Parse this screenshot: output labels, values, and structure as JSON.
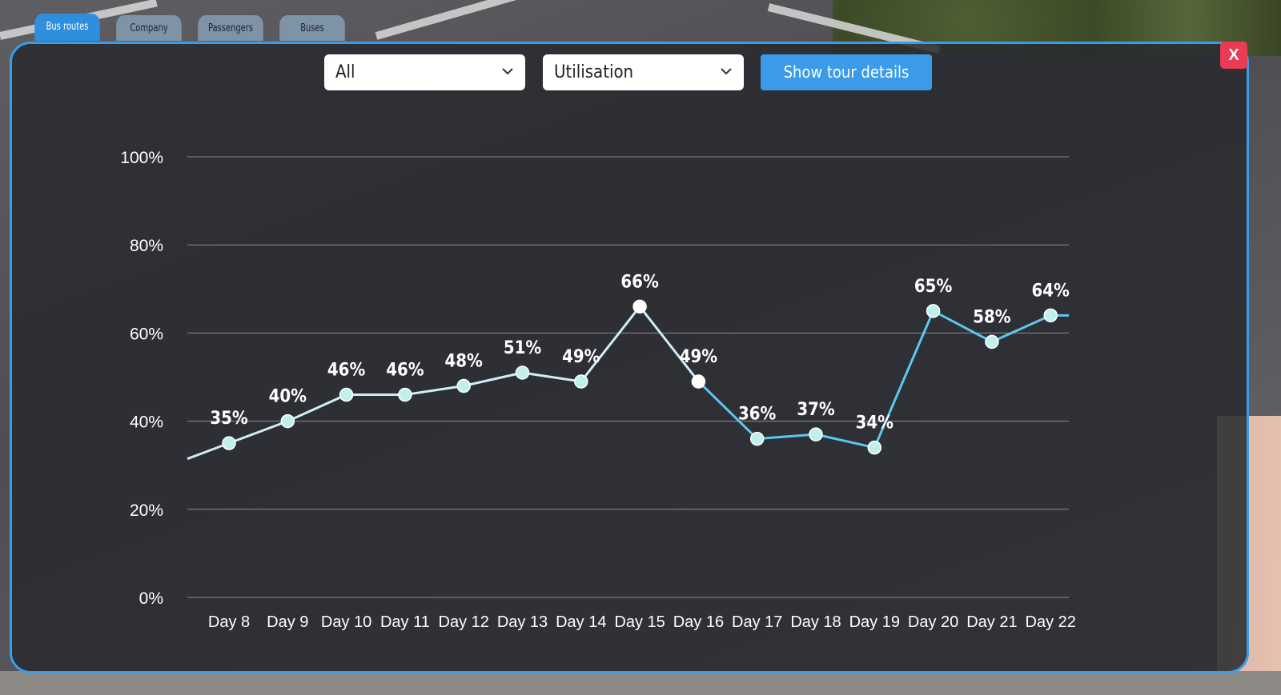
{
  "tabs": [
    {
      "label": "Bus routes",
      "active": true
    },
    {
      "label": "Company",
      "active": false
    },
    {
      "label": "Passengers",
      "active": false
    },
    {
      "label": "Buses",
      "active": false
    }
  ],
  "close_label": "X",
  "filters": {
    "route_select": "All",
    "metric_select": "Utilisation",
    "show_button": "Show tour details"
  },
  "colors": {
    "accent": "#3b9be8",
    "close": "#e83c55",
    "line_recent": "#5cc6f2",
    "line_past": "#cfeef8",
    "marker": "#bff0ea"
  },
  "chart_data": {
    "type": "line",
    "categories": [
      "Day 8",
      "Day 9",
      "Day 10",
      "Day 11",
      "Day 12",
      "Day 13",
      "Day 14",
      "Day 15",
      "Day 16",
      "Day 17",
      "Day 18",
      "Day 19",
      "Day 20",
      "Day 21",
      "Day 22"
    ],
    "values": [
      35,
      40,
      46,
      46,
      48,
      51,
      49,
      66,
      49,
      36,
      37,
      34,
      65,
      58,
      64
    ],
    "labels": [
      "35%",
      "40%",
      "46%",
      "46%",
      "48%",
      "51%",
      "49%",
      "66%",
      "49%",
      "36%",
      "37%",
      "34%",
      "65%",
      "58%",
      "64%"
    ],
    "ylim": [
      0,
      100
    ],
    "yticks": [
      "0%",
      "20%",
      "40%",
      "60%",
      "80%",
      "100%"
    ],
    "grid": true
  }
}
